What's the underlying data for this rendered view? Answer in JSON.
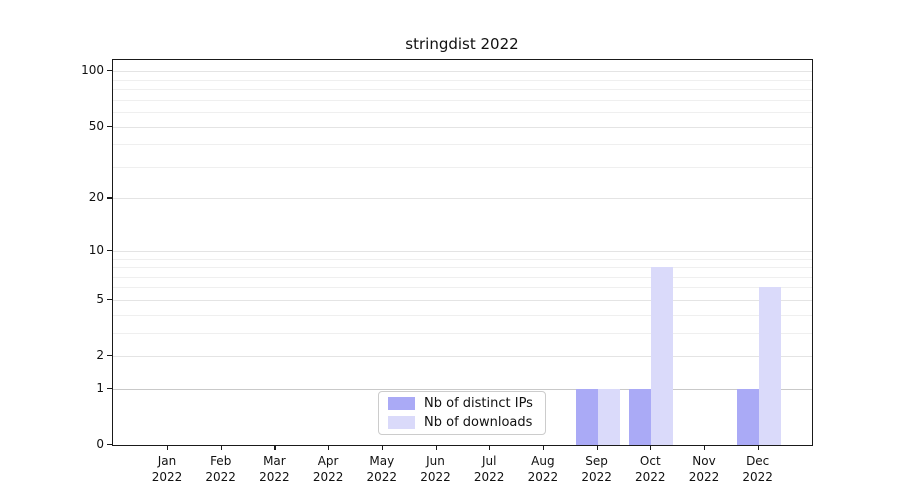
{
  "chart_data": {
    "type": "bar",
    "title": "stringdist 2022",
    "year": "2022",
    "months": [
      "Jan",
      "Feb",
      "Mar",
      "Apr",
      "May",
      "Jun",
      "Jul",
      "Aug",
      "Sep",
      "Oct",
      "Nov",
      "Dec"
    ],
    "series": [
      {
        "name": "Nb of distinct IPs",
        "color": "#aaaaf6",
        "values": [
          0,
          0,
          0,
          0,
          0,
          0,
          0,
          0,
          1,
          1,
          0,
          1
        ]
      },
      {
        "name": "Nb of downloads",
        "color": "#dadafa",
        "values": [
          0,
          0,
          0,
          0,
          0,
          0,
          0,
          0,
          1,
          8,
          0,
          6
        ]
      }
    ],
    "y_axis": {
      "scale": "log1p",
      "ticks": [
        0,
        1,
        2,
        5,
        10,
        20,
        50,
        100
      ],
      "minor_gridlines": [
        3,
        4,
        6,
        7,
        8,
        9,
        30,
        40,
        60,
        70,
        80,
        90
      ],
      "max": 115
    },
    "x_axis": {
      "label_format": "month-newline-year"
    },
    "legend": {
      "position": "bottom-center"
    },
    "colors": {
      "baseline_gridline": "#c9c9c9",
      "major_gridline": "#e4e4e4",
      "minor_gridline": "#efefef",
      "spine": "#1a1a1a"
    }
  }
}
